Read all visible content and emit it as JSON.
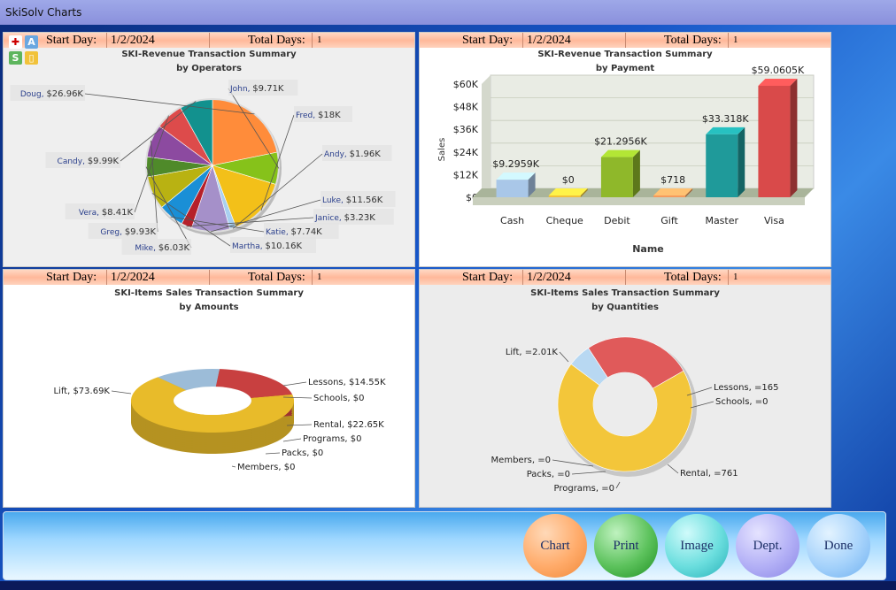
{
  "window": {
    "title": "SkiSolv Charts"
  },
  "headers": {
    "start_label": "Start Day:",
    "start_value": "1/2/2024",
    "days_label": "Total Days:",
    "days_value": "1"
  },
  "chart_data": [
    {
      "type": "pie",
      "title": "SKI-Revenue Transaction Summary",
      "subtitle": "by Operators",
      "slices": [
        {
          "label": "Doug",
          "value_text": "$26.96K",
          "value": 26.96,
          "color": "#ff8c3a"
        },
        {
          "label": "John",
          "value_text": "$9.71K",
          "value": 9.71,
          "color": "#86c21a"
        },
        {
          "label": "Fred",
          "value_text": "$18K",
          "value": 18.0,
          "color": "#f3c019"
        },
        {
          "label": "Andy",
          "value_text": "$1.96K",
          "value": 1.96,
          "color": "#a9d0f0"
        },
        {
          "label": "Luke",
          "value_text": "$11.56K",
          "value": 11.56,
          "color": "#a590c9"
        },
        {
          "label": "Janice",
          "value_text": "$3.23K",
          "value": 3.23,
          "color": "#b6202a"
        },
        {
          "label": "Katie",
          "value_text": "$7.74K",
          "value": 7.74,
          "color": "#1a8fd6"
        },
        {
          "label": "Martha",
          "value_text": "$10.16K",
          "value": 10.16,
          "color": "#b9b212"
        },
        {
          "label": "Mike",
          "value_text": "$6.03K",
          "value": 6.03,
          "color": "#4f8a2a"
        },
        {
          "label": "Greg",
          "value_text": "$9.93K",
          "value": 9.93,
          "color": "#8c4aa0"
        },
        {
          "label": "Vera",
          "value_text": "$8.41K",
          "value": 8.41,
          "color": "#dd4b4b"
        },
        {
          "label": "Candy",
          "value_text": "$9.99K",
          "value": 9.99,
          "color": "#12918e"
        }
      ]
    },
    {
      "type": "bar",
      "title": "SKI-Revenue Transaction Summary",
      "subtitle": "by Payment",
      "xlabel": "Name",
      "ylabel": "Sales",
      "ylim": [
        0,
        60
      ],
      "yticks": [
        "$0",
        "$12K",
        "$24K",
        "$36K",
        "$48K",
        "$60K"
      ],
      "categories": [
        "Cash",
        "Cheque",
        "Debit",
        "Gift",
        "Master",
        "Visa"
      ],
      "values": [
        9.2959,
        0,
        21.2956,
        0.718,
        33.318,
        59.0605
      ],
      "labels": [
        "$9.2959K",
        "$0",
        "$21.2956K",
        "$718",
        "$33.318K",
        "$59.0605K"
      ],
      "colors": [
        "#a9c7e8",
        "#f1c23a",
        "#8fb82a",
        "#f59b5c",
        "#1f9a9a",
        "#d94a4a"
      ]
    },
    {
      "type": "pie",
      "title": "SKI-Items Sales Transaction Summary",
      "subtitle": "by Amounts",
      "slices": [
        {
          "label": "Lift",
          "value_text": "$73.69K",
          "value": 73.69,
          "color": "#e8bb2a"
        },
        {
          "label": "Lessons",
          "value_text": "$14.55K",
          "value": 14.55,
          "color": "#9cbcd8"
        },
        {
          "label": "Schools",
          "value_text": "$0",
          "value": 0,
          "color": "#9cbcd8"
        },
        {
          "label": "Rental",
          "value_text": "$22.65K",
          "value": 22.65,
          "color": "#c84040"
        },
        {
          "label": "Programs",
          "value_text": "$0",
          "value": 0,
          "color": "#c84040"
        },
        {
          "label": "Packs",
          "value_text": "$0",
          "value": 0,
          "color": "#c84040"
        },
        {
          "label": "Members",
          "value_text": "$0",
          "value": 0,
          "color": "#c84040"
        }
      ]
    },
    {
      "type": "pie",
      "title": "SKI-Items Sales Transaction Summary",
      "subtitle": "by Quantities",
      "slices": [
        {
          "label": "Lift",
          "value_text": "=2.01K",
          "value": 2010,
          "color": "#f3c63a"
        },
        {
          "label": "Lessons",
          "value_text": "=165",
          "value": 165,
          "color": "#b8d8f2"
        },
        {
          "label": "Schools",
          "value_text": "=0",
          "value": 0,
          "color": "#b8d8f2"
        },
        {
          "label": "Rental",
          "value_text": "=761",
          "value": 761,
          "color": "#e05a5a"
        },
        {
          "label": "Programs",
          "value_text": "=0",
          "value": 0,
          "color": "#e05a5a"
        },
        {
          "label": "Packs",
          "value_text": "=0",
          "value": 0,
          "color": "#e05a5a"
        },
        {
          "label": "Members",
          "value_text": "=0",
          "value": 0,
          "color": "#e05a5a"
        }
      ]
    }
  ],
  "buttons": {
    "chart": "Chart",
    "print": "Print",
    "image": "Image",
    "dept": "Dept.",
    "done": "Done"
  }
}
